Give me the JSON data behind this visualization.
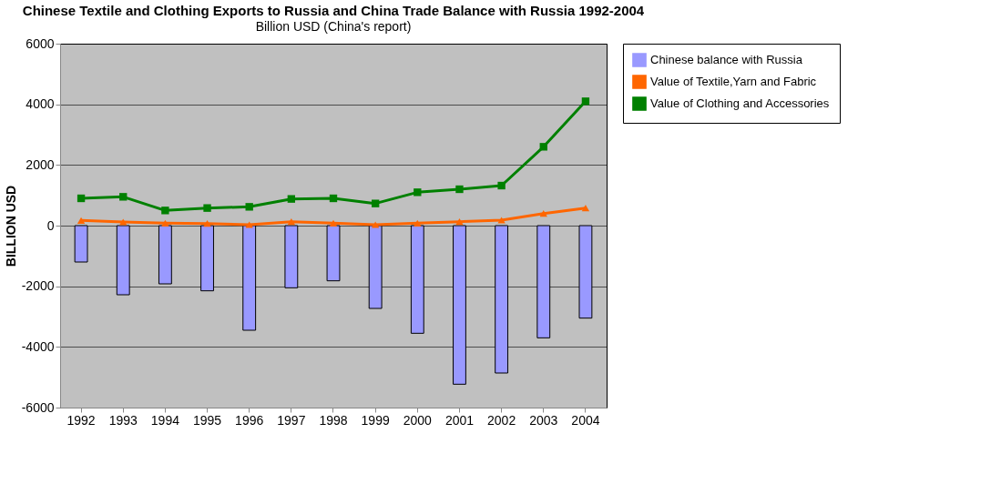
{
  "chart_data": {
    "type": "bar",
    "title": "Chinese Textile and Clothing Exports to Russia and China Trade Balance with Russia 1992-2004",
    "subtitle": "Billion USD (China's report)",
    "ylabel": "BILLION USD",
    "categories": [
      "1992",
      "1993",
      "1994",
      "1995",
      "1996",
      "1997",
      "1998",
      "1999",
      "2000",
      "2001",
      "2002",
      "2003",
      "2004"
    ],
    "series": [
      {
        "name": "Chinese balance with Russia",
        "color": "#9999ff",
        "values": [
          -1200,
          -2280,
          -1920,
          -2150,
          -3450,
          -2050,
          -1820,
          -2730,
          -3550,
          -5230,
          -4860,
          -3700,
          -3050
        ]
      },
      {
        "name": "Value of Textile,Yarn and Fabric",
        "type": "line",
        "marker": "triangle",
        "color": "#ff6600",
        "values": [
          170,
          120,
          80,
          70,
          30,
          130,
          80,
          30,
          80,
          130,
          180,
          400,
          580
        ]
      },
      {
        "name": "Value of Clothing and Accessories",
        "type": "line",
        "marker": "square",
        "color": "#008000",
        "values": [
          900,
          950,
          500,
          580,
          620,
          880,
          900,
          730,
          1100,
          1200,
          1320,
          2600,
          4100
        ]
      }
    ],
    "ylim": [
      -6000,
      6000
    ],
    "yticks": [
      -6000,
      -4000,
      -2000,
      0,
      2000,
      4000,
      6000
    ],
    "grid": "y",
    "legend": "right"
  }
}
